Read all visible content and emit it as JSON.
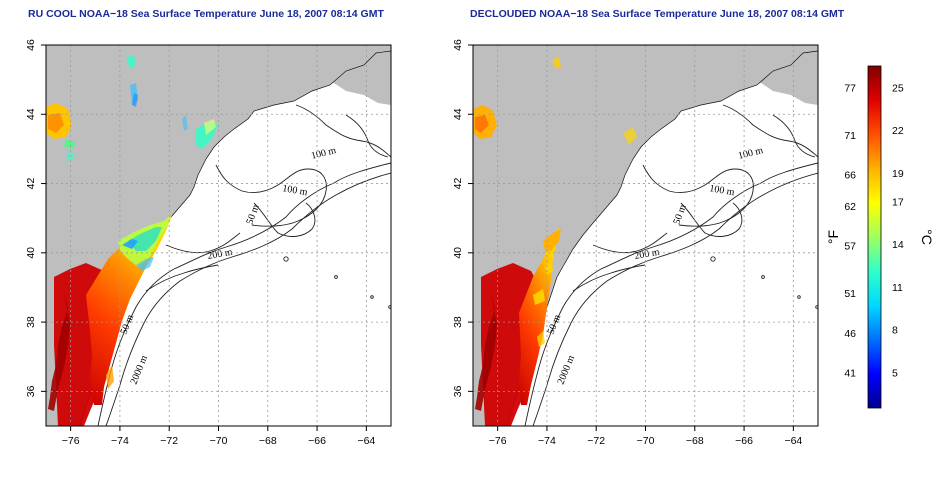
{
  "panels": [
    {
      "title": "RU COOL NOAA−18 Sea Surface Temperature June 18, 2007 08:14 GMT",
      "variant": "raw"
    },
    {
      "title": "DECLOUDED NOAA−18 Sea Surface Temperature June 18, 2007 08:14 GMT",
      "variant": "declouded"
    }
  ],
  "axes": {
    "lon_ticks": [
      "−76",
      "−74",
      "−72",
      "−70",
      "−68",
      "−66",
      "−64"
    ],
    "lat_ticks": [
      "46",
      "44",
      "42",
      "40",
      "38",
      "36"
    ],
    "lon_range": [
      -77,
      -63
    ],
    "lat_range": [
      35,
      46
    ]
  },
  "contour_labels": [
    "100 m",
    "100 m",
    "50 m",
    "200 m",
    "50 m",
    "2000 m"
  ],
  "colorbar": {
    "fahrenheit_label": "°F",
    "celsius_label": "°C",
    "fahrenheit_ticks": [
      "77",
      "71",
      "66",
      "62",
      "57",
      "51",
      "46",
      "41"
    ],
    "celsius_ticks": [
      "25",
      "22",
      "19",
      "17",
      "14",
      "11",
      "8",
      "5"
    ],
    "celsius_range": [
      2.5,
      26.5
    ],
    "colors": [
      "#000090",
      "#0000ff",
      "#0070ff",
      "#00d8ff",
      "#30ffc8",
      "#a0ff60",
      "#ffff00",
      "#ffb000",
      "#ff5000",
      "#e00000",
      "#800000"
    ]
  },
  "colors": {
    "land": "#bebebe",
    "title": "#1a2a9a"
  }
}
